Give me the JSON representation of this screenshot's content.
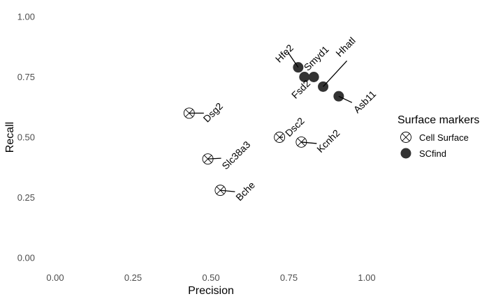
{
  "chart_data": {
    "type": "scatter",
    "title": "",
    "xlabel": "Precision",
    "ylabel": "Recall",
    "xlim": [
      0,
      1
    ],
    "ylim": [
      0,
      1
    ],
    "x_ticks": [
      "0.00",
      "0.25",
      "0.50",
      "0.75",
      "1.00"
    ],
    "y_ticks": [
      "0.00",
      "0.25",
      "0.50",
      "0.75",
      "1.00"
    ],
    "grid": false,
    "legend": {
      "title": "Surface markers",
      "placement": "right",
      "entries": [
        {
          "label": "Cell Surface",
          "marker": "circle-x"
        },
        {
          "label": "SCfind",
          "marker": "filled-circle"
        }
      ]
    },
    "series": [
      {
        "name": "Cell Surface",
        "marker": "circle-x",
        "color": "#000000",
        "points": [
          {
            "label": "Dsg2",
            "x": 0.43,
            "y": 0.6
          },
          {
            "label": "Slc38a3",
            "x": 0.49,
            "y": 0.41
          },
          {
            "label": "Bche",
            "x": 0.53,
            "y": 0.28
          },
          {
            "label": "Dsc2",
            "x": 0.72,
            "y": 0.5
          },
          {
            "label": "Kcnh2",
            "x": 0.79,
            "y": 0.48
          }
        ]
      },
      {
        "name": "SCfind",
        "marker": "filled-circle",
        "color": "#333333",
        "points": [
          {
            "label": "Hfe2",
            "x": 0.78,
            "y": 0.79
          },
          {
            "label": "Smyd1",
            "x": 0.8,
            "y": 0.75
          },
          {
            "label": "Fsd2",
            "x": 0.83,
            "y": 0.75
          },
          {
            "label": "Hhatl",
            "x": 0.86,
            "y": 0.71
          },
          {
            "label": "Asb11",
            "x": 0.91,
            "y": 0.67
          }
        ]
      }
    ]
  }
}
